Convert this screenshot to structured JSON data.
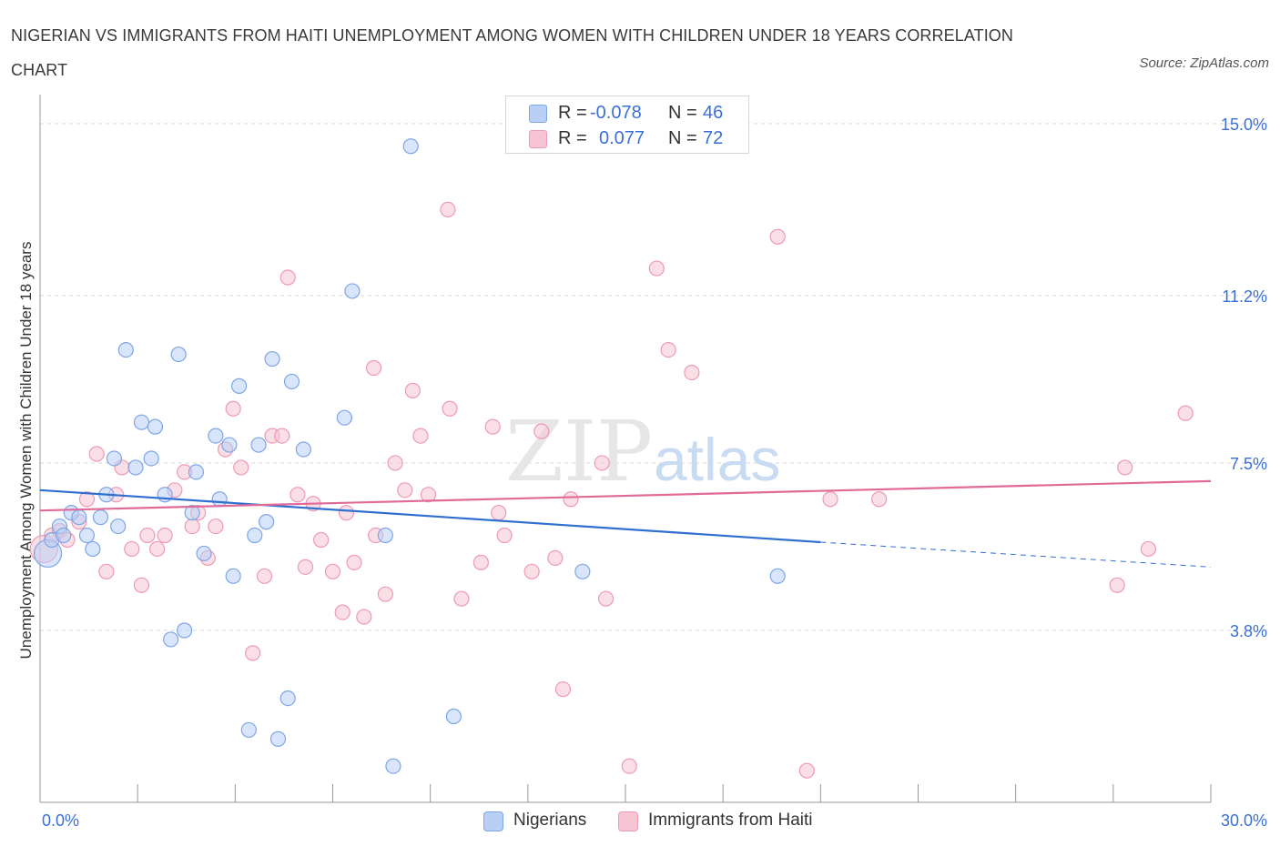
{
  "header": {
    "title": "NIGERIAN VS IMMIGRANTS FROM HAITI UNEMPLOYMENT AMONG WOMEN WITH CHILDREN UNDER 18 YEARS CORRELATION CHART",
    "source": "Source: ZipAtlas.com"
  },
  "watermark": {
    "zip": "ZIP",
    "atlas": "atlas"
  },
  "legend": {
    "rows": [
      {
        "r_label": "R =",
        "r_value": "-0.078",
        "n_label": "N =",
        "n_value": "46"
      },
      {
        "r_label": "R =",
        "r_value": "0.077",
        "n_label": "N =",
        "n_value": "72"
      }
    ]
  },
  "bottom_legend": {
    "series1": "Nigerians",
    "series2": "Immigrants from Haiti"
  },
  "colors": {
    "nigerians_fill": "#b8d0f5",
    "nigerians_stroke": "#7ea6e6",
    "nigerians_line": "#2f6fd0",
    "haiti_fill": "#f7c4d4",
    "haiti_stroke": "#ee9ab5",
    "haiti_line": "#e06b98",
    "tick_label": "#3b6fd8",
    "grid": "#d9d9d9"
  },
  "chart_data": {
    "type": "scatter",
    "title": "NIGERIAN VS IMMIGRANTS FROM HAITI UNEMPLOYMENT AMONG WOMEN WITH CHILDREN UNDER 18 YEARS CORRELATION CHART",
    "xlabel": "",
    "ylabel": "Unemployment Among Women with Children Under 18 years",
    "xlim": [
      0,
      30
    ],
    "ylim": [
      0,
      15.4
    ],
    "x_tick_labels": [
      "0.0%",
      "30.0%"
    ],
    "y_ticks": [
      3.8,
      7.5,
      11.2,
      15.0
    ],
    "y_tick_labels": [
      "3.8%",
      "7.5%",
      "11.2%",
      "15.0%"
    ],
    "grid": true,
    "legend_position": "bottom",
    "series": [
      {
        "name": "Nigerians",
        "trend": {
          "x": [
            0,
            20
          ],
          "y": [
            6.9,
            5.75
          ],
          "dashed_to": [
            30,
            5.2
          ]
        },
        "points": [
          {
            "x": 0.2,
            "y": 5.5,
            "big": true
          },
          {
            "x": 0.5,
            "y": 6.1
          },
          {
            "x": 0.3,
            "y": 5.8
          },
          {
            "x": 0.6,
            "y": 5.9
          },
          {
            "x": 0.8,
            "y": 6.4
          },
          {
            "x": 1.0,
            "y": 6.3
          },
          {
            "x": 1.2,
            "y": 5.9
          },
          {
            "x": 1.35,
            "y": 5.6
          },
          {
            "x": 1.7,
            "y": 6.8
          },
          {
            "x": 1.55,
            "y": 6.3
          },
          {
            "x": 2.0,
            "y": 6.1
          },
          {
            "x": 1.9,
            "y": 7.6
          },
          {
            "x": 2.2,
            "y": 10.0
          },
          {
            "x": 2.45,
            "y": 7.4
          },
          {
            "x": 2.6,
            "y": 8.4
          },
          {
            "x": 2.85,
            "y": 7.6
          },
          {
            "x": 2.95,
            "y": 8.3
          },
          {
            "x": 3.2,
            "y": 6.8
          },
          {
            "x": 3.35,
            "y": 3.6
          },
          {
            "x": 3.55,
            "y": 9.9
          },
          {
            "x": 3.7,
            "y": 3.8
          },
          {
            "x": 3.9,
            "y": 6.4
          },
          {
            "x": 4.0,
            "y": 7.3
          },
          {
            "x": 4.2,
            "y": 5.5
          },
          {
            "x": 4.5,
            "y": 8.1
          },
          {
            "x": 4.6,
            "y": 6.7
          },
          {
            "x": 4.85,
            "y": 7.9
          },
          {
            "x": 4.95,
            "y": 5.0
          },
          {
            "x": 5.1,
            "y": 9.2
          },
          {
            "x": 5.35,
            "y": 1.6
          },
          {
            "x": 5.5,
            "y": 5.9
          },
          {
            "x": 5.6,
            "y": 7.9
          },
          {
            "x": 5.8,
            "y": 6.2
          },
          {
            "x": 5.95,
            "y": 9.8
          },
          {
            "x": 6.1,
            "y": 1.4
          },
          {
            "x": 6.35,
            "y": 2.3
          },
          {
            "x": 6.45,
            "y": 9.3
          },
          {
            "x": 6.75,
            "y": 7.8
          },
          {
            "x": 7.8,
            "y": 8.5
          },
          {
            "x": 8.0,
            "y": 11.3
          },
          {
            "x": 8.85,
            "y": 5.9
          },
          {
            "x": 9.05,
            "y": 0.8
          },
          {
            "x": 9.5,
            "y": 14.5
          },
          {
            "x": 10.6,
            "y": 1.9
          },
          {
            "x": 13.9,
            "y": 5.1
          },
          {
            "x": 18.9,
            "y": 5.0
          }
        ]
      },
      {
        "name": "Immigrants from Haiti",
        "trend": {
          "x": [
            0,
            30
          ],
          "y": [
            6.45,
            7.1
          ]
        },
        "points": [
          {
            "x": 0.1,
            "y": 5.6,
            "big": true
          },
          {
            "x": 0.3,
            "y": 5.9
          },
          {
            "x": 0.5,
            "y": 6.0
          },
          {
            "x": 0.7,
            "y": 5.8
          },
          {
            "x": 1.0,
            "y": 6.2
          },
          {
            "x": 1.2,
            "y": 6.7
          },
          {
            "x": 1.45,
            "y": 7.7
          },
          {
            "x": 1.7,
            "y": 5.1
          },
          {
            "x": 1.95,
            "y": 6.8
          },
          {
            "x": 2.1,
            "y": 7.4
          },
          {
            "x": 2.35,
            "y": 5.6
          },
          {
            "x": 2.6,
            "y": 4.8
          },
          {
            "x": 2.75,
            "y": 5.9
          },
          {
            "x": 3.0,
            "y": 5.6
          },
          {
            "x": 3.2,
            "y": 5.9
          },
          {
            "x": 3.45,
            "y": 6.9
          },
          {
            "x": 3.7,
            "y": 7.3
          },
          {
            "x": 3.9,
            "y": 6.1
          },
          {
            "x": 4.05,
            "y": 6.4
          },
          {
            "x": 4.3,
            "y": 5.4
          },
          {
            "x": 4.5,
            "y": 6.1
          },
          {
            "x": 4.75,
            "y": 7.8
          },
          {
            "x": 4.95,
            "y": 8.7
          },
          {
            "x": 5.15,
            "y": 7.4
          },
          {
            "x": 5.45,
            "y": 3.3
          },
          {
            "x": 5.75,
            "y": 5.0
          },
          {
            "x": 5.95,
            "y": 8.1
          },
          {
            "x": 6.2,
            "y": 8.1
          },
          {
            "x": 6.35,
            "y": 11.6
          },
          {
            "x": 6.6,
            "y": 6.8
          },
          {
            "x": 6.8,
            "y": 5.2
          },
          {
            "x": 7.0,
            "y": 6.6
          },
          {
            "x": 7.2,
            "y": 5.8
          },
          {
            "x": 7.5,
            "y": 5.1
          },
          {
            "x": 7.75,
            "y": 4.2
          },
          {
            "x": 7.85,
            "y": 6.4
          },
          {
            "x": 8.05,
            "y": 5.3
          },
          {
            "x": 8.3,
            "y": 4.1
          },
          {
            "x": 8.55,
            "y": 9.6
          },
          {
            "x": 8.6,
            "y": 5.9
          },
          {
            "x": 8.85,
            "y": 4.6
          },
          {
            "x": 9.1,
            "y": 7.5
          },
          {
            "x": 9.35,
            "y": 6.9
          },
          {
            "x": 9.55,
            "y": 9.1
          },
          {
            "x": 9.75,
            "y": 8.1
          },
          {
            "x": 9.95,
            "y": 6.8
          },
          {
            "x": 10.45,
            "y": 13.1
          },
          {
            "x": 10.5,
            "y": 8.7
          },
          {
            "x": 10.8,
            "y": 4.5
          },
          {
            "x": 11.3,
            "y": 5.3
          },
          {
            "x": 11.6,
            "y": 8.3
          },
          {
            "x": 11.75,
            "y": 6.4
          },
          {
            "x": 11.9,
            "y": 5.9
          },
          {
            "x": 12.6,
            "y": 5.1
          },
          {
            "x": 12.85,
            "y": 8.2
          },
          {
            "x": 13.2,
            "y": 5.4
          },
          {
            "x": 13.4,
            "y": 2.5
          },
          {
            "x": 13.6,
            "y": 6.7
          },
          {
            "x": 14.4,
            "y": 7.5
          },
          {
            "x": 14.5,
            "y": 4.5
          },
          {
            "x": 15.1,
            "y": 0.8
          },
          {
            "x": 15.8,
            "y": 11.8
          },
          {
            "x": 16.1,
            "y": 10.0
          },
          {
            "x": 16.7,
            "y": 9.5
          },
          {
            "x": 18.9,
            "y": 12.5
          },
          {
            "x": 19.65,
            "y": 0.7
          },
          {
            "x": 20.25,
            "y": 6.7
          },
          {
            "x": 21.5,
            "y": 6.7
          },
          {
            "x": 27.6,
            "y": 4.8
          },
          {
            "x": 27.8,
            "y": 7.4
          },
          {
            "x": 28.4,
            "y": 5.6
          },
          {
            "x": 29.35,
            "y": 8.6
          }
        ]
      }
    ]
  }
}
